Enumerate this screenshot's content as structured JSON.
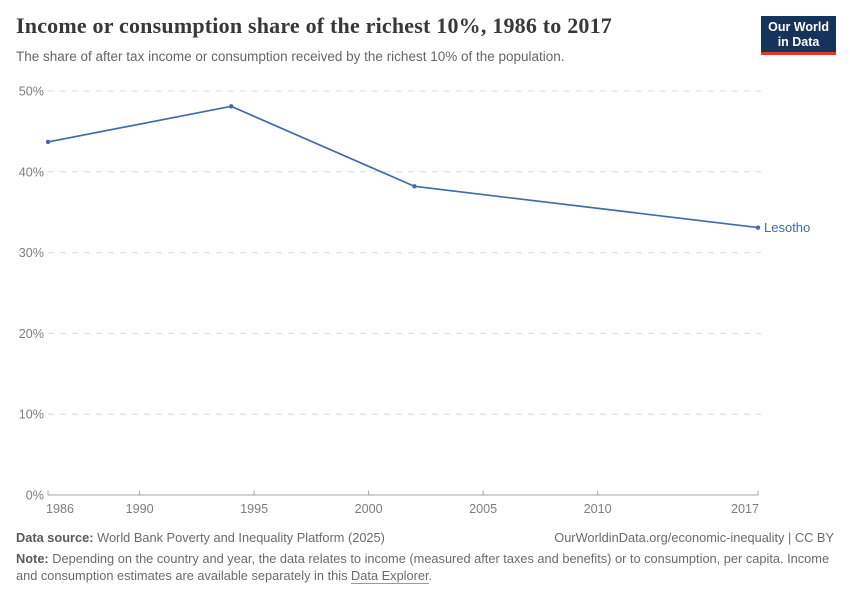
{
  "header": {
    "title": "Income or consumption share of the richest 10%, 1986 to 2017",
    "subtitle": "The share of after tax income or consumption received by the richest 10% of the population.",
    "logo": {
      "line1": "Our World",
      "line2": "in Data",
      "bg_color": "#16335c",
      "accent_color": "#e0392e"
    }
  },
  "chart_data": {
    "type": "line",
    "title": "Income or consumption share of the richest 10%, 1986 to 2017",
    "entity_label": "Lesotho",
    "x": [
      1986,
      1994,
      2002,
      2017
    ],
    "series": [
      {
        "name": "Lesotho",
        "values": [
          43.7,
          48.1,
          38.2,
          33.1
        ]
      }
    ],
    "unit": "%",
    "xlabel": "",
    "ylabel": "",
    "xlim": [
      1986,
      2017
    ],
    "ylim": [
      0,
      50
    ],
    "yticks": [
      0,
      10,
      20,
      30,
      40,
      50
    ],
    "xticks": [
      1986,
      1990,
      1995,
      2000,
      2005,
      2010,
      2017
    ],
    "grid": "horizontal-dashed",
    "legend_position": "end-of-line-label",
    "line_color": "#4269a9",
    "axis_color": "#a5a5a5",
    "grid_color": "#dcdcdc",
    "tick_label_color": "#7d7d7d"
  },
  "footer": {
    "source_label": "Data source:",
    "source_text": "World Bank Poverty and Inequality Platform (2025)",
    "url_text": "OurWorldinData.org/economic-inequality | CC BY",
    "note_label": "Note:",
    "note_text": "Depending on the country and year, the data relates to income (measured after taxes and benefits) or to consumption, per capita. Income and consumption estimates are available separately in this",
    "note_link": "Data Explorer",
    "note_suffix": "."
  }
}
